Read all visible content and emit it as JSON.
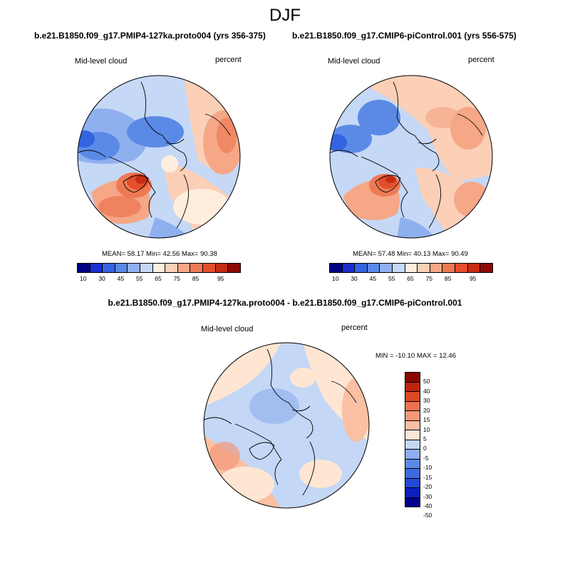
{
  "season_title": "DJF",
  "colors": {
    "abs_scale": [
      "#000080",
      "#1c2ecf",
      "#3564e0",
      "#5b8ae6",
      "#8fb0ef",
      "#c5d8f6",
      "#ffeedd",
      "#fbd0b7",
      "#f5a786",
      "#ee7a55",
      "#e34e2b",
      "#c72b12",
      "#8c0b06"
    ],
    "diff_scale": [
      "#00008c",
      "#0a1fbf",
      "#2449d6",
      "#3d6be0",
      "#5b8ae6",
      "#8cadee",
      "#c4d7f6",
      "#ffe6d3",
      "#f9c0a3",
      "#f39a78",
      "#ec7250",
      "#dc4a23",
      "#be250f",
      "#8a0704"
    ]
  },
  "panels": [
    {
      "id": "pmip4",
      "title": "b.e21.B1850.f09_g17.PMIP4-127ka.proto004 (yrs 356-375)",
      "left_label": "Mid-level cloud",
      "right_label": "percent",
      "stats": "MEAN=  58.17  Min=  42.56  Max=  90.38"
    },
    {
      "id": "cmip6",
      "title": "b.e21.B1850.f09_g17.CMIP6-piControl.001 (yrs 556-575)",
      "left_label": "Mid-level cloud",
      "right_label": "percent",
      "stats": "MEAN=  57.48  Min=  40.13  Max=  90.49"
    }
  ],
  "abs_colorbar_ticks": [
    "10",
    "30",
    "45",
    "55",
    "65",
    "75",
    "85",
    "95"
  ],
  "diff": {
    "title": "b.e21.B1850.f09_g17.PMIP4-127ka.proto004 - b.e21.B1850.f09_g17.CMIP6-piControl.001",
    "left_label": "Mid-level cloud",
    "right_label": "percent",
    "stats": "MIN = -10.10 MAX =  12.46",
    "colorbar_ticks": [
      "50",
      "40",
      "30",
      "20",
      "15",
      "10",
      "5",
      "0",
      "-5",
      "-10",
      "-15",
      "-20",
      "-30",
      "-40",
      "-50"
    ]
  }
}
